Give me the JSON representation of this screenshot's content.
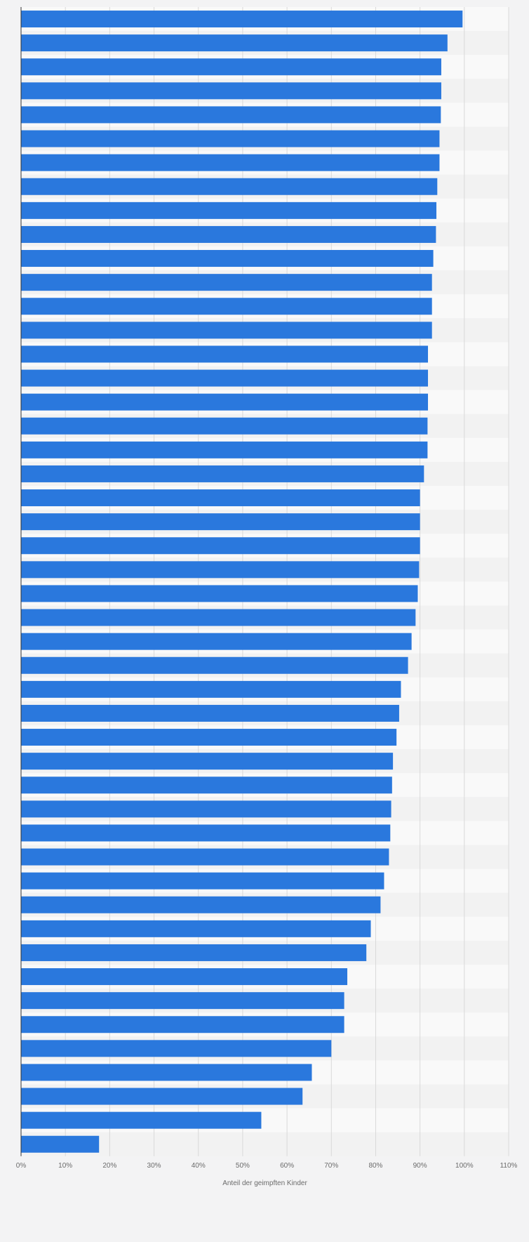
{
  "chart_data": {
    "type": "bar",
    "orientation": "horizontal",
    "title": "",
    "ylabel": "",
    "xlabel": "Anteil der geimpften Kinder",
    "xlim": [
      0,
      110
    ],
    "xticks": [
      0,
      10,
      20,
      30,
      40,
      50,
      60,
      70,
      80,
      90,
      100,
      110
    ],
    "xtick_labels": [
      "0%",
      "10%",
      "20%",
      "30%",
      "40%",
      "50%",
      "60%",
      "70%",
      "80%",
      "90%",
      "100%",
      "110%"
    ],
    "grid": true,
    "legend": "none",
    "values": [
      99.6,
      96.2,
      94.8,
      94.8,
      94.7,
      94.4,
      94.4,
      93.9,
      93.7,
      93.6,
      93.0,
      92.7,
      92.7,
      92.7,
      91.8,
      91.8,
      91.8,
      91.7,
      91.7,
      90.9,
      90.0,
      90.0,
      90.0,
      89.8,
      89.5,
      89.0,
      88.1,
      87.3,
      85.7,
      85.3,
      84.7,
      83.9,
      83.7,
      83.5,
      83.3,
      83.0,
      81.9,
      81.1,
      78.9,
      77.9,
      73.6,
      72.9,
      72.9,
      70.0,
      65.6,
      63.5,
      54.2,
      17.6
    ]
  },
  "colors": {
    "bar": "#2a78dd",
    "band_light": "#f9f9f9",
    "band_dark": "#f2f2f2",
    "grid": "#d9d9d9",
    "axis": "#333333",
    "label": "#6b6b6b"
  }
}
